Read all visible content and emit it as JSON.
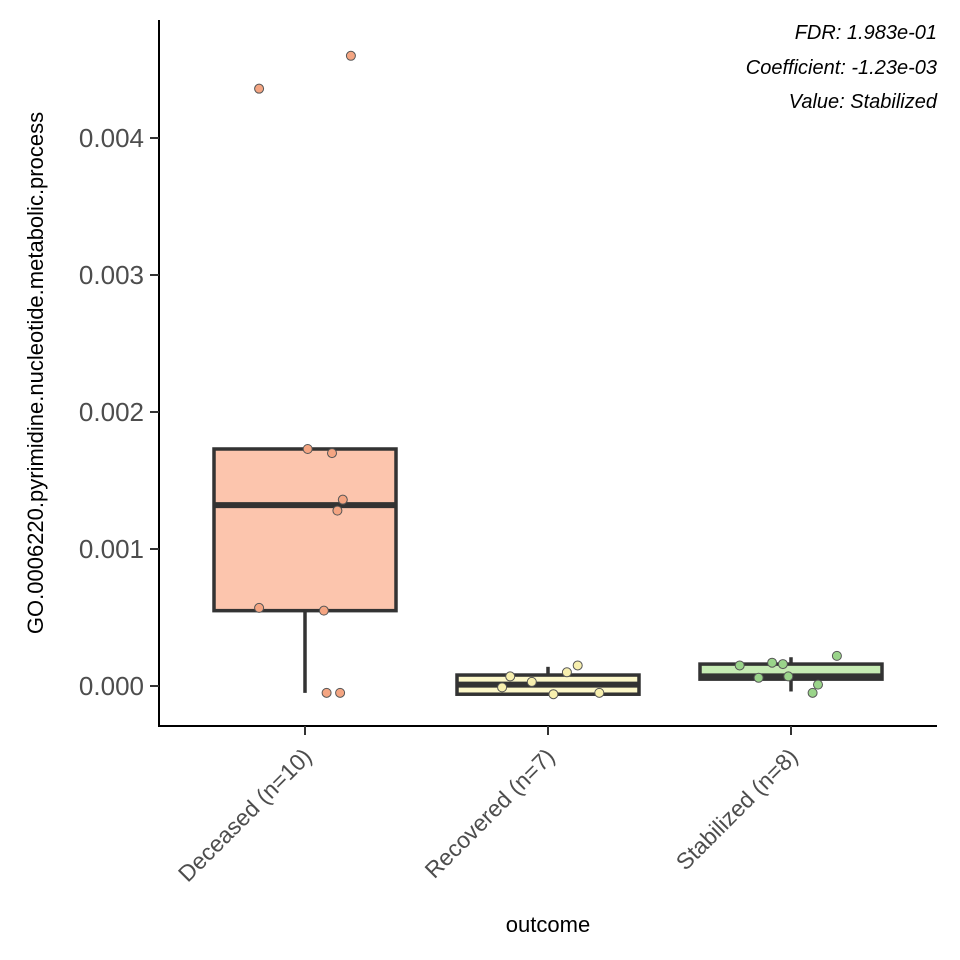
{
  "chart_data": {
    "type": "box",
    "xlabel": "outcome",
    "ylabel": "GO.0006220.pyrimidine.nucleotide.metabolic.process",
    "ylim": [
      -0.0003,
      0.0049
    ],
    "yticks": [
      "0.000",
      "0.001",
      "0.002",
      "0.003",
      "0.004"
    ],
    "ytick_values": [
      0,
      0.001,
      0.002,
      0.003,
      0.004
    ],
    "grid": false,
    "legend": "none",
    "annotations": [
      "FDR: 1.983e-01",
      "Coefficient: -1.23e-03",
      "Value: Stabilized"
    ],
    "categories": [
      "Deceased (n=10)",
      "Recovered (n=7)",
      "Stabilized (n=8)"
    ],
    "groups": [
      {
        "name": "Deceased (n=10)",
        "color": "#fcc5ad",
        "point_color": "#f4a582",
        "box": {
          "whisker_low": -5e-05,
          "q1": 0.00055,
          "median": 0.00132,
          "q3": 0.00173,
          "whisker_high": 0.00173
        },
        "points": [
          {
            "x": -0.17,
            "y": 0.00436
          },
          {
            "x": 0.17,
            "y": 0.0046
          },
          {
            "x": 0.01,
            "y": 0.00173
          },
          {
            "x": 0.1,
            "y": 0.0017
          },
          {
            "x": 0.14,
            "y": 0.00136
          },
          {
            "x": 0.12,
            "y": 0.00128
          },
          {
            "x": -0.17,
            "y": 0.00057
          },
          {
            "x": 0.07,
            "y": 0.00055
          },
          {
            "x": 0.08,
            "y": -5e-05
          },
          {
            "x": 0.13,
            "y": -5e-05
          }
        ]
      },
      {
        "name": "Recovered (n=7)",
        "color": "#fcf7c8",
        "point_color": "#f7efae",
        "box": {
          "whisker_low": -6e-05,
          "q1": -6e-05,
          "median": 1e-05,
          "q3": 8e-05,
          "whisker_high": 0.00014
        },
        "points": [
          {
            "x": -0.17,
            "y": -1e-05
          },
          {
            "x": -0.14,
            "y": 7e-05
          },
          {
            "x": 0.02,
            "y": -6e-05
          },
          {
            "x": 0.07,
            "y": 0.0001
          },
          {
            "x": 0.11,
            "y": 0.00015
          },
          {
            "x": 0.19,
            "y": -5e-05
          },
          {
            "x": -0.06,
            "y": 3e-05
          }
        ]
      },
      {
        "name": "Stabilized (n=8)",
        "color": "#c6ebb4",
        "point_color": "#9ad48a",
        "box": {
          "whisker_low": -4e-05,
          "q1": 5e-05,
          "median": 7e-05,
          "q3": 0.00016,
          "whisker_high": 0.00021
        },
        "points": [
          {
            "x": -0.19,
            "y": 0.00015
          },
          {
            "x": -0.12,
            "y": 6e-05
          },
          {
            "x": -0.07,
            "y": 0.00017
          },
          {
            "x": -0.03,
            "y": 0.00016
          },
          {
            "x": -0.01,
            "y": 7e-05
          },
          {
            "x": 0.08,
            "y": -5e-05
          },
          {
            "x": 0.1,
            "y": 1e-05
          },
          {
            "x": 0.17,
            "y": 0.00022
          }
        ]
      }
    ]
  }
}
